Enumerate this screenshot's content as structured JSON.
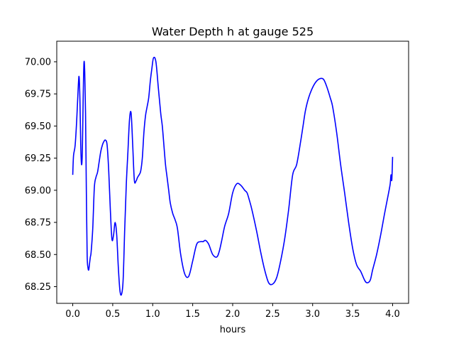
{
  "chart_data": {
    "type": "line",
    "title": "Water Depth h at gauge 525",
    "xlabel": "hours",
    "ylabel": "",
    "xlim": [
      -0.2,
      4.2
    ],
    "ylim": [
      68.12,
      70.16
    ],
    "xticks": [
      0.0,
      0.5,
      1.0,
      1.5,
      2.0,
      2.5,
      3.0,
      3.5,
      4.0
    ],
    "xtick_labels": [
      "0.0",
      "0.5",
      "1.0",
      "1.5",
      "2.0",
      "2.5",
      "3.0",
      "3.5",
      "4.0"
    ],
    "yticks": [
      68.25,
      68.5,
      68.75,
      69.0,
      69.25,
      69.5,
      69.75,
      70.0
    ],
    "ytick_labels": [
      "68.25",
      "68.50",
      "68.75",
      "69.00",
      "69.25",
      "69.50",
      "69.75",
      "70.00"
    ],
    "grid": false,
    "series": [
      {
        "name": "",
        "color": "#0000ff",
        "x": [
          0.0,
          0.01,
          0.03,
          0.05,
          0.07,
          0.08,
          0.09,
          0.1,
          0.11,
          0.12,
          0.13,
          0.14,
          0.15,
          0.16,
          0.17,
          0.18,
          0.19,
          0.2,
          0.21,
          0.22,
          0.23,
          0.25,
          0.27,
          0.29,
          0.31,
          0.33,
          0.35,
          0.37,
          0.39,
          0.41,
          0.43,
          0.45,
          0.47,
          0.49,
          0.51,
          0.53,
          0.55,
          0.57,
          0.59,
          0.61,
          0.63,
          0.65,
          0.67,
          0.69,
          0.71,
          0.73,
          0.75,
          0.77,
          0.79,
          0.81,
          0.83,
          0.85,
          0.87,
          0.89,
          0.91,
          0.93,
          0.95,
          0.97,
          0.99,
          1.01,
          1.04,
          1.07,
          1.1,
          1.12,
          1.14,
          1.16,
          1.18,
          1.2,
          1.22,
          1.25,
          1.28,
          1.31,
          1.35,
          1.4,
          1.45,
          1.5,
          1.55,
          1.6,
          1.63,
          1.66,
          1.7,
          1.75,
          1.8,
          1.83,
          1.86,
          1.9,
          1.95,
          2.0,
          2.05,
          2.1,
          2.15,
          2.18,
          2.21,
          2.24,
          2.3,
          2.35,
          2.4,
          2.45,
          2.5,
          2.55,
          2.6,
          2.65,
          2.7,
          2.75,
          2.8,
          2.85,
          2.88,
          2.91,
          2.95,
          3.0,
          3.05,
          3.1,
          3.14,
          3.18,
          3.22,
          3.25,
          3.3,
          3.35,
          3.4,
          3.45,
          3.5,
          3.55,
          3.6,
          3.65,
          3.68,
          3.72,
          3.75,
          3.8,
          3.85,
          3.9,
          3.95,
          3.97,
          3.98,
          3.99,
          4.0
        ],
        "y": [
          69.12,
          69.27,
          69.35,
          69.55,
          69.82,
          69.88,
          69.7,
          69.35,
          69.2,
          69.3,
          69.7,
          69.99,
          69.92,
          69.6,
          69.0,
          68.5,
          68.4,
          68.38,
          68.43,
          68.48,
          68.52,
          68.7,
          69.02,
          69.1,
          69.14,
          69.22,
          69.3,
          69.35,
          69.38,
          69.39,
          69.35,
          69.15,
          68.85,
          68.62,
          68.65,
          68.75,
          68.65,
          68.4,
          68.22,
          68.19,
          68.3,
          68.7,
          69.05,
          69.3,
          69.55,
          69.6,
          69.35,
          69.08,
          69.07,
          69.1,
          69.12,
          69.15,
          69.25,
          69.45,
          69.58,
          69.65,
          69.72,
          69.85,
          69.95,
          70.03,
          70.0,
          69.8,
          69.6,
          69.5,
          69.35,
          69.2,
          69.1,
          69.0,
          68.9,
          68.82,
          68.77,
          68.7,
          68.5,
          68.35,
          68.33,
          68.45,
          68.58,
          68.6,
          68.6,
          68.61,
          68.58,
          68.5,
          68.48,
          68.52,
          68.6,
          68.72,
          68.82,
          68.98,
          69.05,
          69.04,
          69.0,
          68.98,
          68.92,
          68.85,
          68.68,
          68.52,
          68.38,
          68.28,
          68.27,
          68.32,
          68.45,
          68.62,
          68.85,
          69.12,
          69.2,
          69.38,
          69.5,
          69.62,
          69.72,
          69.8,
          69.85,
          69.87,
          69.86,
          69.8,
          69.72,
          69.65,
          69.45,
          69.2,
          68.98,
          68.75,
          68.55,
          68.42,
          68.37,
          68.3,
          68.28,
          68.3,
          68.38,
          68.5,
          68.65,
          68.82,
          68.98,
          69.05,
          69.12,
          69.08,
          69.26
        ]
      }
    ]
  }
}
